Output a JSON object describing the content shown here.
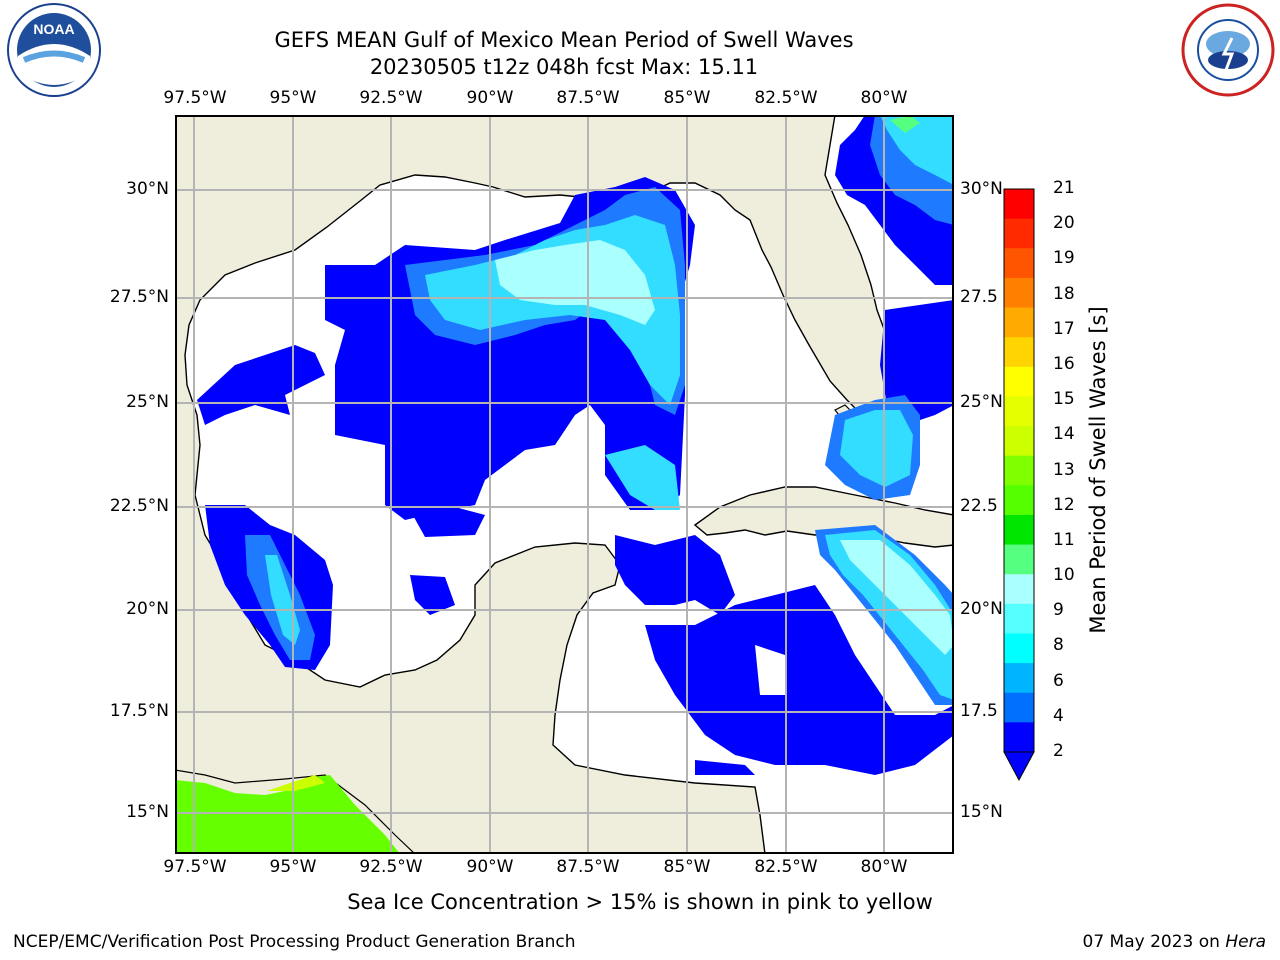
{
  "header": {
    "title_line1": "GEFS MEAN Gulf of Mexico Mean Period of Swell Waves",
    "title_line2": "20230505 t12z 048h fcst   Max: 15.11"
  },
  "map": {
    "lon_ticks": [
      "97.5°W",
      "95°W",
      "92.5°W",
      "90°W",
      "87.5°W",
      "85°W",
      "82.5°W",
      "80°W"
    ],
    "lat_ticks_left": [
      "30°N",
      "27.5°N",
      "25°N",
      "22.5°N",
      "20°N",
      "17.5°N",
      "15°N"
    ],
    "lat_ticks_right": [
      "30°N",
      "27.5",
      "25°N",
      "22.5",
      "20°N",
      "17.5",
      "15°N"
    ],
    "land_color": "#efeddc",
    "ocean_color": "#ffffff",
    "grid_color": "#b4b4b4"
  },
  "colorbar": {
    "label": "Mean Period of Swell Waves [s]",
    "ticks": [
      "21",
      "20",
      "19",
      "18",
      "17",
      "16",
      "15",
      "14",
      "13",
      "12",
      "11",
      "10",
      "9",
      "8",
      "6",
      "4",
      "2"
    ],
    "colors": [
      "#ff0000",
      "#ff2a00",
      "#ff5500",
      "#ff7f00",
      "#ffaa00",
      "#ffd400",
      "#ffff00",
      "#e6ff00",
      "#ccff00",
      "#80ff00",
      "#55ff00",
      "#00e600",
      "#55ff80",
      "#aaffff",
      "#55ffff",
      "#00ffff",
      "#00b4ff",
      "#0070ff",
      "#0000ff"
    ]
  },
  "logos": {
    "left": "NOAA",
    "left_ring": "NATIONAL OCEANIC AND ATMOSPHERIC ADMINISTRATION · U.S. DEPARTMENT OF COMMERCE",
    "right_ring": "NATIONAL WEATHER SERVICE"
  },
  "footer": {
    "note": "Sea Ice Concentration > 15% is shown in pink to yellow",
    "left": "NCEP/EMC/Verification Post Processing Product Generation Branch",
    "date": "07 May 2023 on ",
    "machine": "Hera"
  }
}
